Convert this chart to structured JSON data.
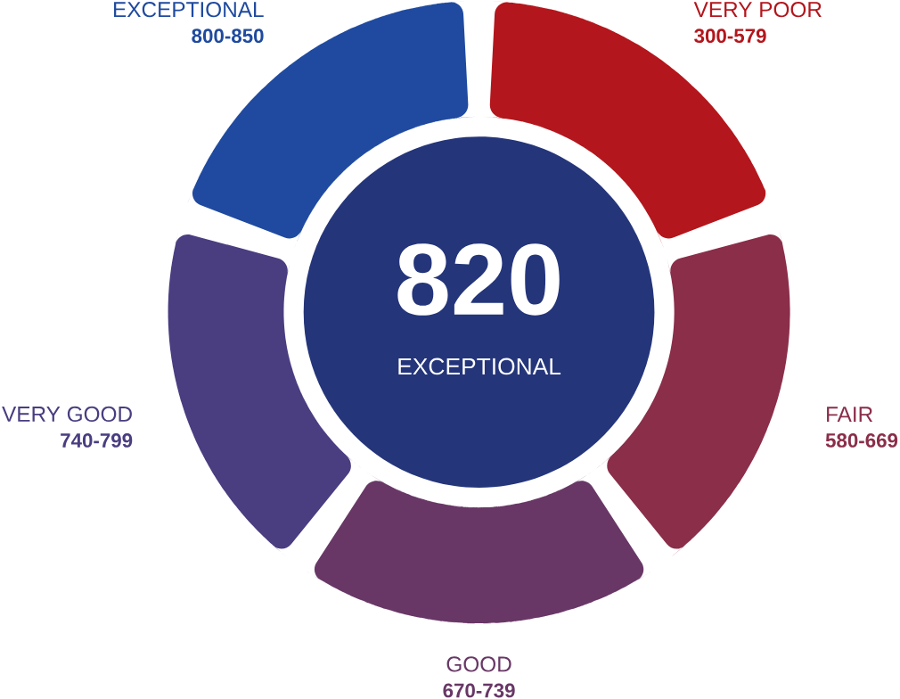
{
  "chart_data": {
    "type": "donut",
    "categories": [
      "VERY POOR",
      "FAIR",
      "GOOD",
      "VERY GOOD",
      "EXCEPTIONAL"
    ],
    "values": [
      20,
      20,
      20,
      20,
      20
    ],
    "colors": [
      "#b3161c",
      "#8a2e4a",
      "#683766",
      "#4a3d80",
      "#1f4a9f"
    ],
    "value_labels": [
      "300-579",
      "580-669",
      "670-739",
      "740-799",
      "800-850"
    ],
    "annotations": [
      "820",
      "EXCEPTIONAL"
    ]
  }
}
